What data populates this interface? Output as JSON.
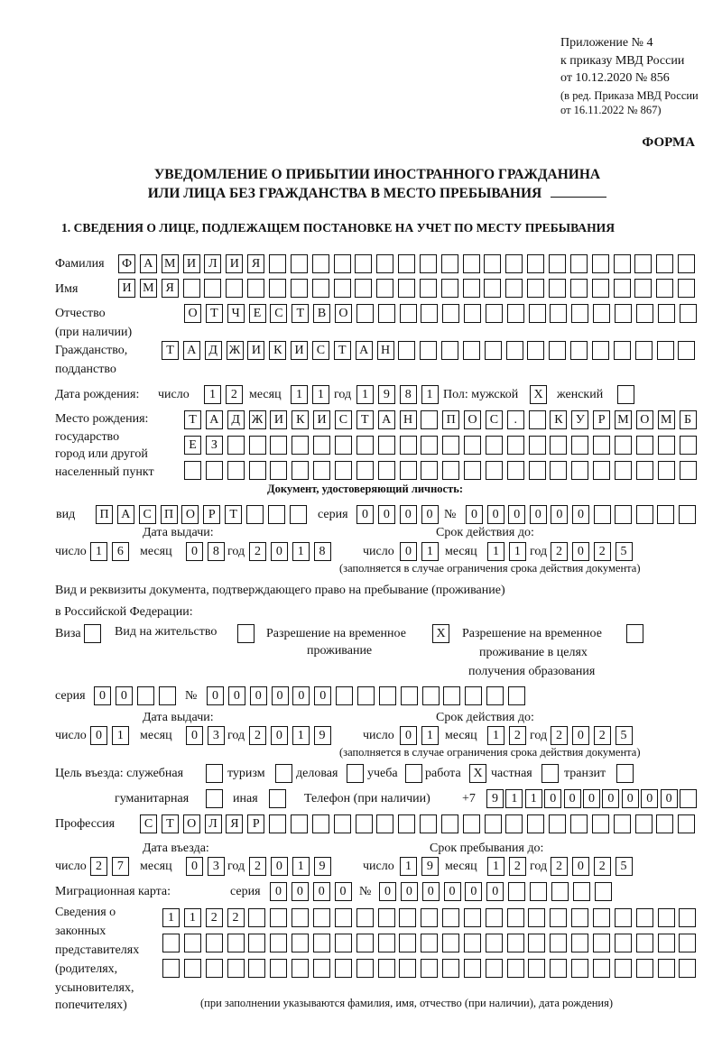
{
  "header": {
    "appendix": [
      "Приложение № 4",
      "к приказу МВД России",
      "от 10.12.2020 № 856"
    ],
    "revision": [
      "(в ред. Приказа МВД России",
      "от 16.11.2022 № 867)"
    ],
    "form_label": "ФОРМА",
    "title": [
      "УВЕДОМЛЕНИЕ О ПРИБЫТИИ ИНОСТРАННОГО ГРАЖДАНИНА",
      "ИЛИ ЛИЦА БЕЗ ГРАЖДАНСТВА В МЕСТО ПРЕБЫВАНИЯ"
    ],
    "section1": "1. СВЕДЕНИЯ О ЛИЦЕ, ПОДЛЕЖАЩЕМ ПОСТАНОВКЕ НА УЧЕТ ПО МЕСТУ ПРЕБЫВАНИЯ"
  },
  "labels": {
    "surname": "Фамилия",
    "name": "Имя",
    "patronymic": [
      "Отчество",
      "(при наличии)"
    ],
    "citizenship": [
      "Гражданство,",
      "подданство"
    ],
    "birth_date": "Дата рождения:",
    "day": "число",
    "month": "месяц",
    "year": "год",
    "sex": "Пол: мужской",
    "female": "женский",
    "birth_place": [
      "Место рождения:",
      "государство",
      "город или другой",
      "населенный пункт"
    ],
    "id_doc": "Документ, удостоверяющий личность:",
    "kind": "вид",
    "series": "серия",
    "number": "№",
    "issue_date": "Дата выдачи:",
    "valid_until": "Срок действия до:",
    "validity_note": "(заполняется в случае ограничения срока действия документа)",
    "stay_doc": [
      "Вид и реквизиты документа, подтверждающего право на пребывание (проживание)",
      "в Российской Федерации:"
    ],
    "visa": "Виза",
    "residence": "Вид на жительство",
    "trp": [
      "Разрешение на временное",
      "проживание"
    ],
    "trp_edu": [
      "Разрешение на временное",
      "проживание в целях",
      "получения образования"
    ],
    "purpose": "Цель въезда: служебная",
    "tourism": "туризм",
    "business": "деловая",
    "study": "учеба",
    "work": "работа",
    "private": "частная",
    "transit": "транзит",
    "humanitarian": "гуманитарная",
    "other": "иная",
    "phone": "Телефон (при наличии)",
    "phone_prefix": "+7",
    "profession": "Профессия",
    "entry_date": "Дата въезда:",
    "stay_until": "Срок пребывания до:",
    "migration_card": "Миграционная карта:",
    "legal_reps": [
      "Сведения о",
      "законных",
      "представителях",
      "(родителях,",
      "усыновителях,",
      "попечителях)"
    ],
    "legal_reps_note": "(при заполнении указываются фамилия, имя, отчество (при наличии), дата рождения)"
  },
  "person": {
    "surname": "ФАМИЛИЯ",
    "name": "ИМЯ",
    "patronymic": "ОТЧЕСТВО",
    "citizenship": "ТАДЖИКИСТАН",
    "birth": {
      "day": "12",
      "month": "11",
      "year": "1981"
    },
    "sex_male": "X",
    "sex_female": "",
    "birth_place": [
      "ТАДЖИКИСТАН ПОС. КУРМОМБ",
      "ЕЗ",
      ""
    ]
  },
  "id_document": {
    "kind": "ПАСПОРТ",
    "series": "0000",
    "number": "000000",
    "issue": {
      "day": "16",
      "month": "08",
      "year": "2018"
    },
    "valid": {
      "day": "01",
      "month": "11",
      "year": "2025"
    }
  },
  "stay_document": {
    "visa": "",
    "residence": "",
    "trp": "X",
    "trp_edu": "",
    "series": "00",
    "number": "000000",
    "issue": {
      "day": "01",
      "month": "03",
      "year": "2019"
    },
    "valid": {
      "day": "01",
      "month": "12",
      "year": "2025"
    }
  },
  "purpose": {
    "official": "",
    "tourism": "",
    "business": "",
    "study": "",
    "work": "X",
    "private": "",
    "transit": "",
    "humanitarian": "",
    "other": ""
  },
  "phone": "9110000000",
  "profession": "СТОЛЯР",
  "entry": {
    "day": "27",
    "month": "03",
    "year": "2019"
  },
  "stay_until": {
    "day": "19",
    "month": "12",
    "year": "2025"
  },
  "migration_card": {
    "series": "0000",
    "number": "000000"
  },
  "legal_reps": [
    "1122",
    "",
    ""
  ]
}
